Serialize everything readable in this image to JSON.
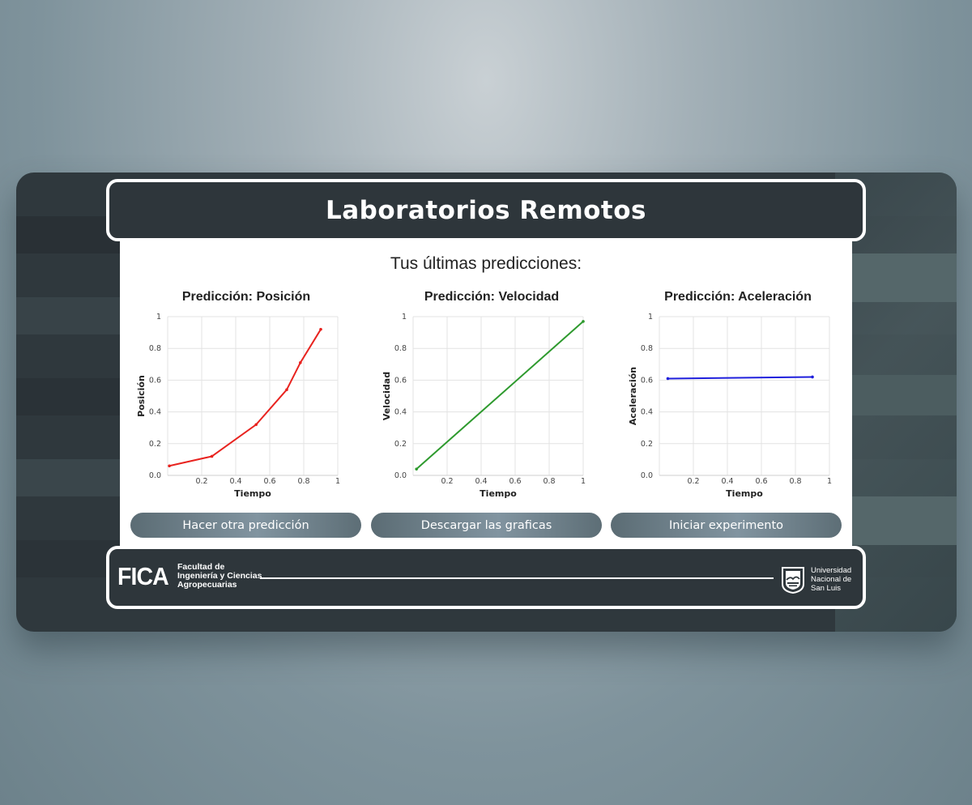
{
  "header": {
    "title": "Laboratorios Remotos"
  },
  "subtitle": "Tus últimas predicciones:",
  "buttons": {
    "another": "Hacer otra predicción",
    "download": "Descargar las graficas",
    "start": "Iniciar experimento"
  },
  "footer": {
    "fica_logo": "FICA",
    "fica_lines": [
      "Facultad de",
      "Ingeniería y Ciencias",
      "Agropecuarias"
    ],
    "unsl_lines": [
      "Universidad",
      "Nacional de",
      "San Luis"
    ]
  },
  "colors": {
    "position": "#e8231f",
    "velocity": "#2e9a2e",
    "acceleration": "#1f1fdc"
  },
  "chart_data": [
    {
      "type": "line",
      "title": "Predicción: Posición",
      "xlabel": "Tiempo",
      "ylabel": "Posición",
      "xlim": [
        0,
        1
      ],
      "ylim": [
        0,
        1
      ],
      "xticks": [
        "0.2",
        "0.4",
        "0.6",
        "0.8",
        "1"
      ],
      "yticks": [
        "0.0",
        "0.2",
        "0.4",
        "0.6",
        "0.8",
        "1"
      ],
      "series": [
        {
          "x": [
            0.01,
            0.26,
            0.52,
            0.7,
            0.78,
            0.9
          ],
          "y": [
            0.06,
            0.12,
            0.32,
            0.54,
            0.71,
            0.92
          ]
        }
      ],
      "grid": true
    },
    {
      "type": "line",
      "title": "Predicción: Velocidad",
      "xlabel": "Tiempo",
      "ylabel": "Velocidad",
      "xlim": [
        0,
        1
      ],
      "ylim": [
        0,
        1
      ],
      "xticks": [
        "0.2",
        "0.4",
        "0.6",
        "0.8",
        "1"
      ],
      "yticks": [
        "0.0",
        "0.2",
        "0.4",
        "0.6",
        "0.8",
        "1"
      ],
      "series": [
        {
          "x": [
            0.02,
            1.0
          ],
          "y": [
            0.04,
            0.97
          ]
        }
      ],
      "grid": true
    },
    {
      "type": "line",
      "title": "Predicción: Aceleración",
      "xlabel": "Tiempo",
      "ylabel": "Aceleración",
      "xlim": [
        0,
        1
      ],
      "ylim": [
        0,
        1
      ],
      "xticks": [
        "0.2",
        "0.4",
        "0.6",
        "0.8",
        "1"
      ],
      "yticks": [
        "0.0",
        "0.2",
        "0.4",
        "0.6",
        "0.8",
        "1"
      ],
      "series": [
        {
          "x": [
            0.05,
            0.9
          ],
          "y": [
            0.61,
            0.62
          ]
        }
      ],
      "grid": true
    }
  ]
}
